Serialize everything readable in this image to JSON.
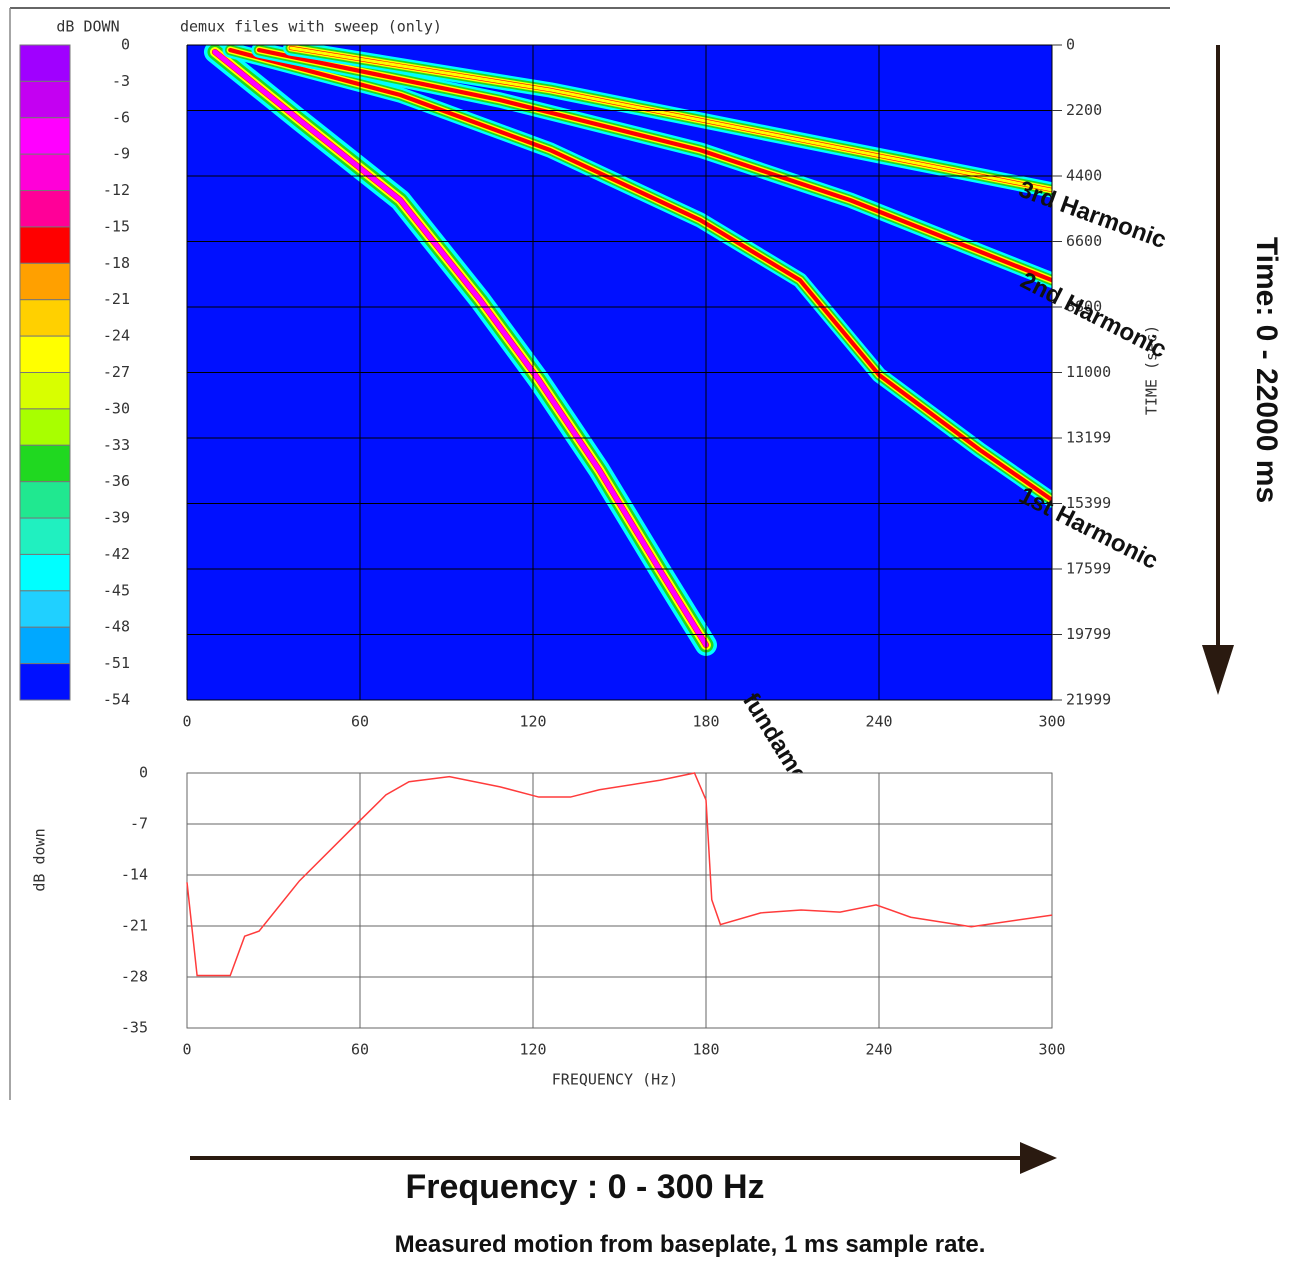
{
  "chart_data": [
    {
      "type": "spectrogram",
      "title": "demux files with sweep (only)",
      "ylabel": "TIME (sec)",
      "colorbar": {
        "title": "dB DOWN",
        "ticks": [
          0,
          -3,
          -6,
          -9,
          -12,
          -15,
          -18,
          -21,
          -24,
          -27,
          -30,
          -33,
          -36,
          -39,
          -42,
          -45,
          -48,
          -51,
          -54
        ],
        "colors": [
          "#a000ff",
          "#c400f2",
          "#ff00ff",
          "#ff00d8",
          "#ff0098",
          "#ff0000",
          "#ffa000",
          "#ffd000",
          "#ffff00",
          "#d8ff00",
          "#a8ff00",
          "#20d820",
          "#20e890",
          "#20f0c0",
          "#00ffff",
          "#20d0ff",
          "#00a8ff",
          "#0010ff"
        ]
      },
      "background": "#0010ff",
      "xlim": [
        0,
        300
      ],
      "xticks": [
        0,
        60,
        120,
        180,
        240,
        300
      ],
      "ylim": [
        0,
        21999
      ],
      "y_inverted": true,
      "yticks": [
        0,
        2200,
        4400,
        6600,
        8800,
        11000,
        13199,
        15399,
        17599,
        19799,
        21999
      ],
      "grid": true,
      "series": [
        {
          "name": "fundamental",
          "color": "#ff00ff",
          "x": [
            9.7,
            39,
            74,
            101.6,
            122,
            143,
            164,
            180
          ],
          "values": [
            235,
            2520,
            5210,
            8560,
            11250,
            14280,
            17640,
            20150
          ]
        },
        {
          "name": "1st Harmonic",
          "color": "#ff0000",
          "x": [
            15,
            74,
            126,
            178,
            212.6,
            240,
            275,
            300
          ],
          "values": [
            170,
            1680,
            3530,
            5880,
            7900,
            11080,
            13600,
            15280
          ]
        },
        {
          "name": "2nd Harmonic",
          "color": "#ff0000",
          "x": [
            25,
            108.6,
            178,
            230,
            300
          ],
          "values": [
            170,
            1850,
            3530,
            5210,
            7900
          ]
        },
        {
          "name": "3rd Harmonic",
          "color": "#ffff00",
          "x": [
            36,
            126,
            212.6,
            300
          ],
          "values": [
            100,
            1510,
            3190,
            4870
          ]
        }
      ]
    },
    {
      "type": "line",
      "xlabel": "FREQUENCY (Hz)",
      "ylabel": "dB down",
      "xlim": [
        0,
        300
      ],
      "xticks": [
        0,
        60,
        120,
        180,
        240,
        300
      ],
      "ylim": [
        -35,
        0
      ],
      "yticks": [
        0,
        -7,
        -14,
        -21,
        -28,
        -35
      ],
      "grid": true,
      "series": [
        {
          "color": "#ff3b3b",
          "x": [
            0,
            3.5,
            15,
            20,
            25,
            39,
            58,
            69,
            77,
            91,
            108.6,
            122,
            133,
            143,
            164,
            176,
            180,
            182,
            185,
            199,
            213,
            226.5,
            239,
            251,
            272,
            300
          ],
          "values": [
            -15.0,
            -27.8,
            -27.8,
            -22.4,
            -21.7,
            -14.8,
            -7.3,
            -3.0,
            -1.2,
            -0.5,
            -1.9,
            -3.3,
            -3.3,
            -2.3,
            -1.0,
            0,
            -3.7,
            -17.4,
            -20.8,
            -19.2,
            -18.8,
            -19.1,
            -18.1,
            -19.8,
            -21.1,
            -19.5
          ]
        }
      ]
    }
  ],
  "time_arrow_label": "Time: 0 - 22000 ms",
  "frequency_arrow_label": "Frequency : 0 - 300 Hz",
  "caption": "Measured motion from baseplate, 1 ms sample rate."
}
